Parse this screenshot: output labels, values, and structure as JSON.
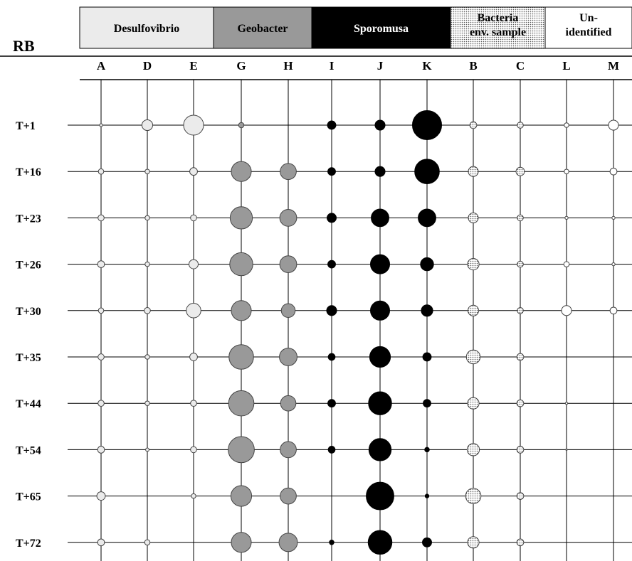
{
  "chart_data": {
    "type": "bubble-grid",
    "corner_label": "RB",
    "groups": [
      {
        "label": "Desulfovibrio",
        "color": "#ebebeb",
        "text_color": "#000000",
        "columns": [
          "A",
          "D",
          "E"
        ]
      },
      {
        "label": "Geobacter",
        "color": "#999999",
        "text_color": "#000000",
        "columns": [
          "G",
          "H"
        ]
      },
      {
        "label": "Sporomusa",
        "color": "#000000",
        "text_color": "#ffffff",
        "columns": [
          "I",
          "J",
          "K"
        ]
      },
      {
        "label": "Bacteria env. sample",
        "label_lines": [
          "Bacteria",
          "env. sample"
        ],
        "color": "#d9d9d9",
        "pattern": "dotted",
        "text_color": "#000000",
        "columns": [
          "B",
          "C"
        ]
      },
      {
        "label": "Un- identified",
        "label_lines": [
          "Un-",
          "identified"
        ],
        "color": "#ffffff",
        "text_color": "#000000",
        "columns": [
          "L",
          "M"
        ]
      }
    ],
    "columns": [
      "A",
      "D",
      "E",
      "G",
      "H",
      "I",
      "J",
      "K",
      "B",
      "C",
      "L",
      "M"
    ],
    "rows": [
      "T+1",
      "T+16",
      "T+23",
      "T+26",
      "T+30",
      "T+35",
      "T+44",
      "T+54",
      "T+65",
      "T+72"
    ],
    "bubble_size_unit": "relative (0-10, proportional to diameter)",
    "values": [
      [
        0.8,
        2.8,
        5.2,
        1.4,
        0,
        2.2,
        2.6,
        7.6,
        1.8,
        1.6,
        1.2,
        2.6
      ],
      [
        1.4,
        1.2,
        2.0,
        5.2,
        4.2,
        2.0,
        2.6,
        6.4,
        2.6,
        2.2,
        1.2,
        1.8
      ],
      [
        1.6,
        1.2,
        1.6,
        5.8,
        4.4,
        2.4,
        4.6,
        4.6,
        2.6,
        1.6,
        0.8,
        0.8
      ],
      [
        1.8,
        1.2,
        2.4,
        6.0,
        4.4,
        2.0,
        5.0,
        3.4,
        3.0,
        1.6,
        1.4,
        0.8
      ],
      [
        1.4,
        1.6,
        3.8,
        5.2,
        3.6,
        2.6,
        5.0,
        3.0,
        2.8,
        1.6,
        2.6,
        1.8
      ],
      [
        1.6,
        1.2,
        2.0,
        6.4,
        4.6,
        1.8,
        5.4,
        2.2,
        3.6,
        1.8,
        0,
        0
      ],
      [
        1.6,
        1.2,
        1.6,
        6.6,
        4.0,
        2.0,
        6.0,
        2.0,
        3.0,
        1.8,
        0.6,
        0
      ],
      [
        1.8,
        0.9,
        1.6,
        6.8,
        4.2,
        1.8,
        5.8,
        1.2,
        3.2,
        1.8,
        0.4,
        0
      ],
      [
        2.2,
        0,
        1.2,
        5.4,
        4.2,
        0,
        7.2,
        1.0,
        4.0,
        1.8,
        0,
        0
      ],
      [
        1.8,
        1.4,
        0,
        5.2,
        4.8,
        1.2,
        6.2,
        2.4,
        3.0,
        1.8,
        0,
        0
      ]
    ]
  }
}
